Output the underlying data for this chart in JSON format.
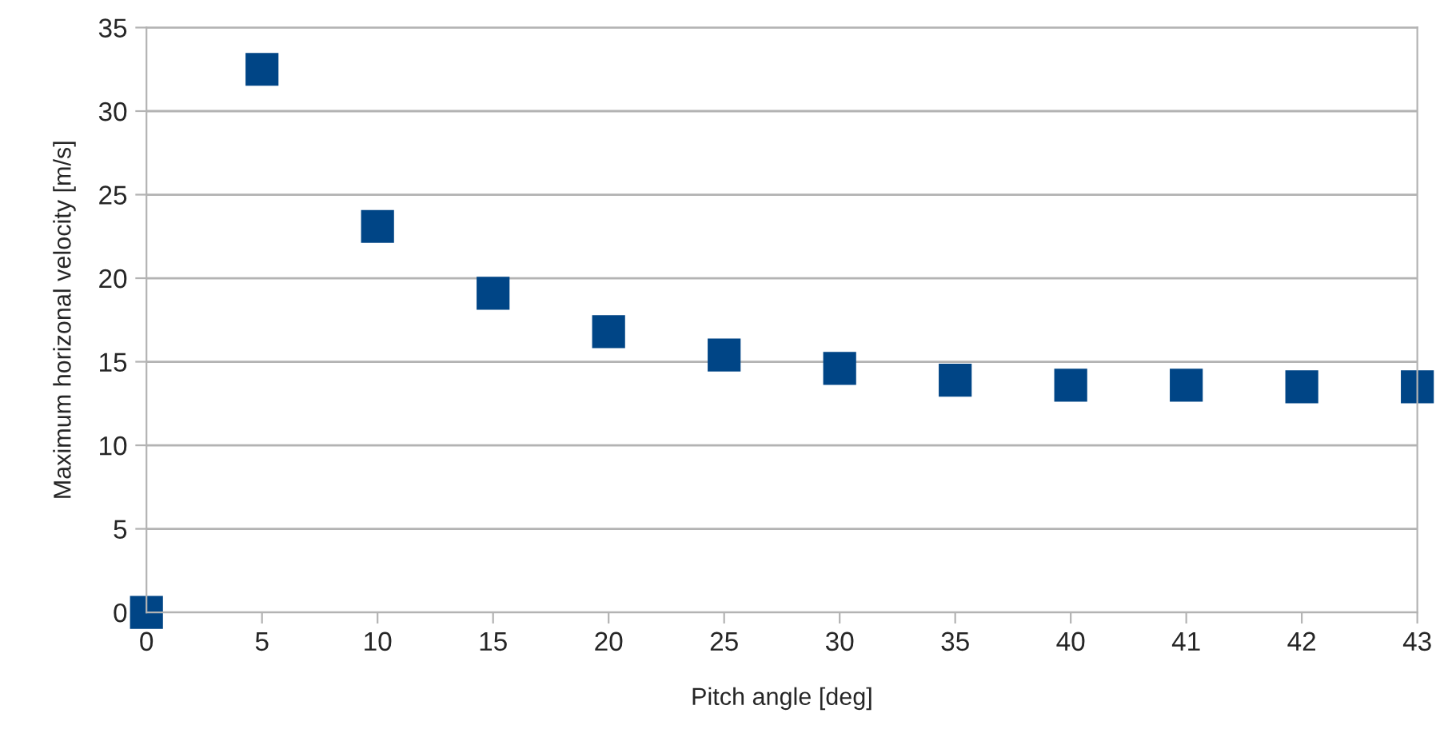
{
  "chart_data": {
    "type": "scatter",
    "xlabel": "Pitch angle [deg]",
    "ylabel": "Maximum horizonal velocity [m/s]",
    "categories": [
      "0",
      "5",
      "10",
      "15",
      "20",
      "25",
      "30",
      "35",
      "40",
      "41",
      "42",
      "43"
    ],
    "series": [
      {
        "color": "#004586",
        "values": [
          0,
          32.5,
          23.1,
          19.1,
          16.8,
          15.4,
          14.6,
          13.9,
          13.6,
          13.6,
          13.5,
          13.5
        ]
      }
    ],
    "ylim": [
      0,
      35
    ],
    "yticks": [
      0,
      5,
      10,
      15,
      20,
      25,
      30,
      35
    ],
    "grid": "y",
    "marker": "square",
    "legend": false
  }
}
